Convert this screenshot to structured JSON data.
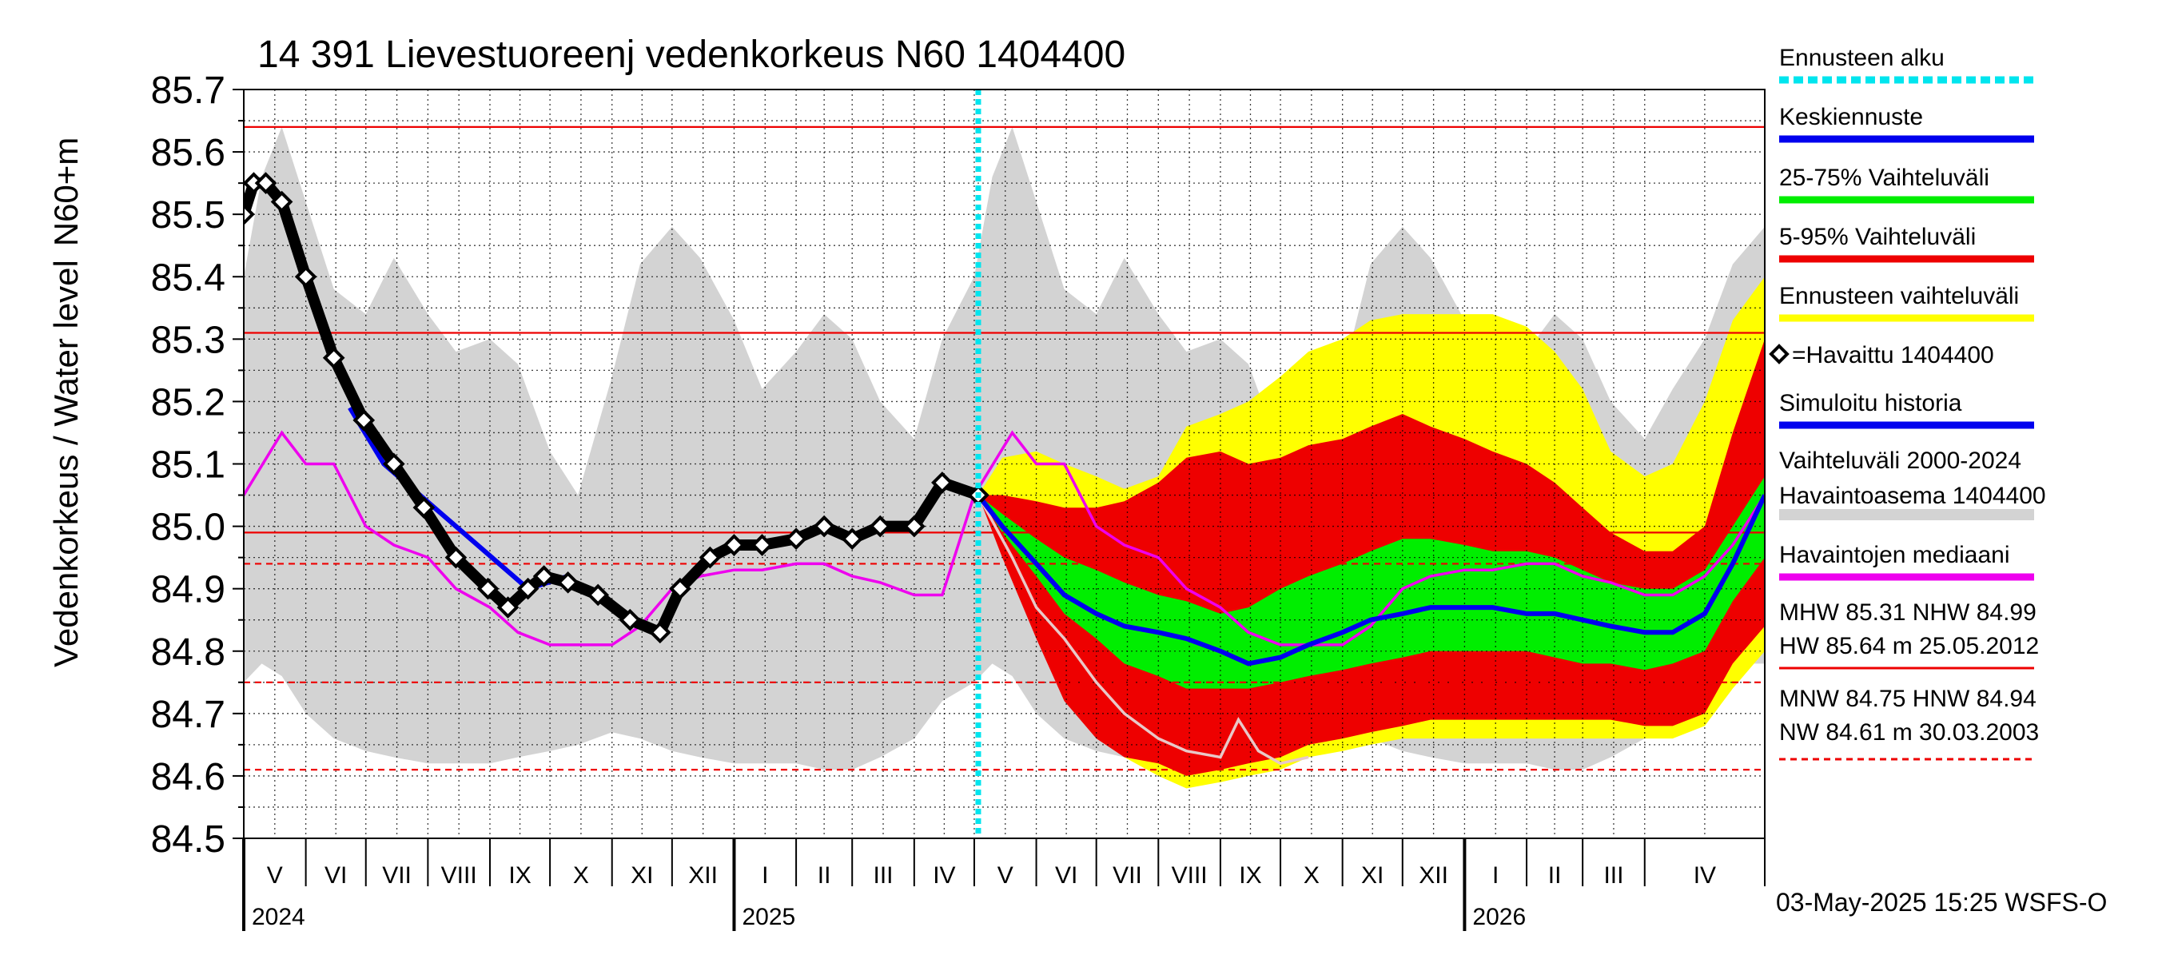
{
  "chart_data": {
    "type": "area",
    "title": "14 391 Lievestuoreenj vedenkorkeus N60 1404400",
    "ylabel_outer": "Vedenkorkeus / Water level",
    "ylabel_inner": "N60+m",
    "ylim": [
      84.5,
      85.7
    ],
    "yticks": [
      "84.5",
      "84.6",
      "84.7",
      "84.8",
      "84.9",
      "85.0",
      "85.1",
      "85.2",
      "85.3",
      "85.4",
      "85.5",
      "85.6",
      "85.7"
    ],
    "x_months": [
      "V",
      "VI",
      "VII",
      "VIII",
      "IX",
      "X",
      "XI",
      "XII",
      "I",
      "II",
      "III",
      "IV",
      "V",
      "VI",
      "VII",
      "VIII",
      "IX",
      "X",
      "XI",
      "XII",
      "I",
      "II",
      "III",
      "IV"
    ],
    "x_years": [
      {
        "label": "2024",
        "month_index": 0
      },
      {
        "label": "2025",
        "month_index": 8
      },
      {
        "label": "2026",
        "month_index": 20
      }
    ],
    "x_range": [
      "2024-05-01",
      "2026-05-31"
    ],
    "grid": true,
    "forecast_start": "2025-05-03",
    "reference_lines": [
      {
        "label": "MHW",
        "value": 85.31,
        "style": "solid"
      },
      {
        "label": "NHW",
        "value": 84.99,
        "style": "solid"
      },
      {
        "label": "HW",
        "value": 85.64,
        "style": "solid"
      },
      {
        "label": "MNW",
        "value": 84.75,
        "style": "dashed"
      },
      {
        "label": "HNW",
        "value": 84.94,
        "style": "dashed"
      },
      {
        "label": "NW",
        "value": 84.61,
        "style": "dashed"
      }
    ],
    "legend": [
      {
        "label": "Ennusteen alku",
        "color": "#00e5ee",
        "kind": "dotted"
      },
      {
        "label": "Keskiennuste",
        "color": "#0000ee",
        "kind": "line"
      },
      {
        "label": "25-75% Vaihteluväli",
        "color": "#00ee00",
        "kind": "line"
      },
      {
        "label": "5-95% Vaihteluväli",
        "color": "#ee0000",
        "kind": "line"
      },
      {
        "label": "Ennusteen vaihteluväli",
        "color": "#ffff00",
        "kind": "line"
      },
      {
        "label": "=Havaittu 1404400",
        "color": "#000000",
        "kind": "marker"
      },
      {
        "label": "Simuloitu historia",
        "color": "#0000ee",
        "kind": "line"
      },
      {
        "label": "Vaihteluväli 2000-2024",
        "color": "",
        "kind": "text"
      },
      {
        "label": " Havaintoasema 1404400",
        "color": "#d3d3d3",
        "kind": "line"
      },
      {
        "label": "Havaintojen mediaani",
        "color": "#ee00ee",
        "kind": "line"
      }
    ],
    "stats": {
      "line1": "MHW  85.31 NHW  84.99",
      "line2": "HW  85.64 m 25.05.2012",
      "line3": "MNW  84.75 HNW  84.94",
      "line4": "NW  84.61 m 30.03.2003"
    },
    "footer": "03-May-2025 15:25 WSFS-O",
    "colors": {
      "history_range": "#d3d3d3",
      "forecast_range": "#ffff00",
      "range_5_95": "#ee0000",
      "range_25_75": "#00ee00",
      "mean_forecast": "#0000ee",
      "simulated": "#0000ee",
      "observed": "#000000",
      "median": "#ee00ee",
      "forecast_start": "#00e5ee",
      "reference": "#ee0000"
    },
    "series": {
      "hist_band": {
        "x": [
          "2024-05-01",
          "2024-05-10",
          "2024-05-20",
          "2024-06-01",
          "2024-06-15",
          "2024-07-01",
          "2024-07-15",
          "2024-08-01",
          "2024-08-15",
          "2024-09-01",
          "2024-09-15",
          "2024-10-01",
          "2024-10-15",
          "2024-11-01",
          "2024-11-15",
          "2024-12-01",
          "2024-12-15",
          "2025-01-01",
          "2025-01-15",
          "2025-02-01",
          "2025-02-15",
          "2025-03-01",
          "2025-03-15",
          "2025-04-01",
          "2025-04-15",
          "2025-05-01",
          "2025-05-10",
          "2025-05-20",
          "2025-06-01",
          "2025-06-15",
          "2025-07-01",
          "2025-07-15",
          "2025-08-01",
          "2025-08-15",
          "2025-09-01",
          "2025-09-15",
          "2025-10-01",
          "2025-10-15",
          "2025-11-01",
          "2025-11-15",
          "2025-12-01",
          "2025-12-15",
          "2026-01-01",
          "2026-01-15",
          "2026-02-01",
          "2026-02-15",
          "2026-03-01",
          "2026-03-15",
          "2026-04-01",
          "2026-04-15",
          "2026-05-01",
          "2026-05-15",
          "2026-05-31"
        ],
        "lo": [
          84.75,
          84.78,
          84.76,
          84.7,
          84.66,
          84.64,
          84.63,
          84.62,
          84.62,
          84.62,
          84.63,
          84.64,
          84.65,
          84.67,
          84.66,
          84.64,
          84.63,
          84.62,
          84.62,
          84.62,
          84.61,
          84.61,
          84.63,
          84.66,
          84.72,
          84.75,
          84.78,
          84.76,
          84.7,
          84.66,
          84.64,
          84.63,
          84.62,
          84.62,
          84.62,
          84.63,
          84.64,
          84.65,
          84.67,
          84.66,
          84.64,
          84.63,
          84.62,
          84.62,
          84.62,
          84.61,
          84.61,
          84.63,
          84.66,
          84.7,
          84.75,
          84.78,
          84.78
        ],
        "hi": [
          85.4,
          85.56,
          85.64,
          85.52,
          85.38,
          85.34,
          85.43,
          85.34,
          85.28,
          85.3,
          85.26,
          85.12,
          85.05,
          85.24,
          85.42,
          85.48,
          85.43,
          85.33,
          85.22,
          85.28,
          85.34,
          85.3,
          85.2,
          85.14,
          85.3,
          85.4,
          85.56,
          85.64,
          85.52,
          85.38,
          85.34,
          85.43,
          85.34,
          85.28,
          85.3,
          85.26,
          85.12,
          85.05,
          85.24,
          85.42,
          85.48,
          85.43,
          85.33,
          85.22,
          85.28,
          85.34,
          85.3,
          85.2,
          85.14,
          85.22,
          85.3,
          85.42,
          85.48
        ]
      },
      "fc_x": [
        "2025-05-03",
        "2025-05-15",
        "2025-06-01",
        "2025-06-15",
        "2025-07-01",
        "2025-07-15",
        "2025-08-01",
        "2025-08-15",
        "2025-09-01",
        "2025-09-15",
        "2025-10-01",
        "2025-10-15",
        "2025-11-01",
        "2025-11-15",
        "2025-12-01",
        "2025-12-15",
        "2026-01-01",
        "2026-01-15",
        "2026-02-01",
        "2026-02-15",
        "2026-03-01",
        "2026-03-15",
        "2026-04-01",
        "2026-04-15",
        "2026-05-01",
        "2026-05-15",
        "2026-05-31"
      ],
      "fc_y_lo": [
        85.05,
        84.98,
        84.88,
        84.75,
        84.68,
        84.63,
        84.6,
        84.58,
        84.59,
        84.6,
        84.61,
        84.63,
        84.64,
        84.65,
        84.66,
        84.66,
        84.66,
        84.66,
        84.66,
        84.66,
        84.66,
        84.66,
        84.66,
        84.66,
        84.68,
        84.74,
        84.8
      ],
      "fc_y_hi": [
        85.05,
        85.11,
        85.12,
        85.1,
        85.08,
        85.06,
        85.08,
        85.16,
        85.18,
        85.2,
        85.24,
        85.28,
        85.3,
        85.33,
        85.34,
        85.34,
        85.34,
        85.34,
        85.32,
        85.28,
        85.22,
        85.12,
        85.08,
        85.1,
        85.2,
        85.33,
        85.4
      ],
      "fc_r_lo": [
        85.05,
        84.95,
        84.82,
        84.72,
        84.66,
        84.63,
        84.62,
        84.6,
        84.61,
        84.62,
        84.63,
        84.65,
        84.66,
        84.67,
        84.68,
        84.69,
        84.69,
        84.69,
        84.69,
        84.69,
        84.69,
        84.69,
        84.68,
        84.68,
        84.7,
        84.78,
        84.84
      ],
      "fc_r_hi": [
        85.05,
        85.05,
        85.04,
        85.03,
        85.03,
        85.04,
        85.07,
        85.11,
        85.12,
        85.1,
        85.11,
        85.13,
        85.14,
        85.16,
        85.18,
        85.16,
        85.14,
        85.12,
        85.1,
        85.07,
        85.03,
        84.99,
        84.96,
        84.96,
        85.0,
        85.15,
        85.3
      ],
      "fc_g_lo": [
        85.05,
        84.99,
        84.92,
        84.86,
        84.82,
        84.78,
        84.76,
        84.74,
        84.74,
        84.74,
        84.75,
        84.76,
        84.77,
        84.78,
        84.79,
        84.8,
        84.8,
        84.8,
        84.8,
        84.79,
        84.78,
        84.78,
        84.77,
        84.78,
        84.8,
        84.88,
        84.95
      ],
      "fc_g_hi": [
        85.05,
        85.02,
        84.98,
        84.95,
        84.93,
        84.91,
        84.89,
        84.88,
        84.86,
        84.87,
        84.9,
        84.92,
        84.94,
        84.96,
        84.98,
        84.98,
        84.97,
        84.96,
        84.96,
        84.95,
        84.93,
        84.91,
        84.9,
        84.9,
        84.93,
        85.0,
        85.08
      ],
      "fc_mean": [
        85.05,
        85.0,
        84.94,
        84.89,
        84.86,
        84.84,
        84.83,
        84.82,
        84.8,
        84.78,
        84.79,
        84.81,
        84.83,
        84.85,
        84.86,
        84.87,
        84.87,
        84.87,
        84.86,
        84.86,
        84.85,
        84.84,
        84.83,
        84.83,
        84.86,
        84.94,
        85.05
      ],
      "observed": {
        "x": [
          "2024-05-01",
          "2024-05-06",
          "2024-05-12",
          "2024-05-20",
          "2024-06-01",
          "2024-06-15",
          "2024-06-30",
          "2024-07-15",
          "2024-07-30",
          "2024-08-15",
          "2024-08-31",
          "2024-09-10",
          "2024-09-20",
          "2024-09-28",
          "2024-10-10",
          "2024-10-25",
          "2024-11-10",
          "2024-11-25",
          "2024-12-05",
          "2024-12-20",
          "2025-01-01",
          "2025-01-15",
          "2025-02-01",
          "2025-02-15",
          "2025-03-01",
          "2025-03-15",
          "2025-04-01",
          "2025-04-15",
          "2025-05-03"
        ],
        "y": [
          85.5,
          85.55,
          85.55,
          85.52,
          85.4,
          85.27,
          85.17,
          85.1,
          85.03,
          84.95,
          84.9,
          84.87,
          84.9,
          84.92,
          84.91,
          84.89,
          84.85,
          84.83,
          84.9,
          84.95,
          84.97,
          84.97,
          84.98,
          85.0,
          84.98,
          85.0,
          85.0,
          85.07,
          85.05
        ]
      },
      "simulated": {
        "x": [
          "2024-06-23",
          "2024-07-10",
          "2024-09-20",
          "2024-10-10"
        ],
        "y": [
          85.19,
          85.1,
          84.9,
          84.92
        ]
      },
      "median": {
        "x": [
          "2024-05-01",
          "2024-05-20",
          "2024-06-01",
          "2024-06-15",
          "2024-07-01",
          "2024-07-15",
          "2024-08-01",
          "2024-08-15",
          "2024-09-01",
          "2024-09-15",
          "2024-10-01",
          "2024-10-15",
          "2024-11-01",
          "2024-11-15",
          "2024-12-01",
          "2024-12-15",
          "2025-01-01",
          "2025-01-15",
          "2025-02-01",
          "2025-02-15",
          "2025-03-01",
          "2025-03-15",
          "2025-04-01",
          "2025-04-15",
          "2025-05-01",
          "2025-05-20",
          "2025-06-01",
          "2025-06-15",
          "2025-07-01",
          "2025-07-15",
          "2025-08-01",
          "2025-08-15",
          "2025-09-01",
          "2025-09-15",
          "2025-10-01",
          "2025-10-15",
          "2025-11-01",
          "2025-11-15",
          "2025-12-01",
          "2025-12-15",
          "2026-01-01",
          "2026-01-15",
          "2026-02-01",
          "2026-02-15",
          "2026-03-01",
          "2026-03-15",
          "2026-04-01",
          "2026-04-15",
          "2026-05-01",
          "2026-05-15",
          "2026-05-31"
        ],
        "y": [
          85.05,
          85.15,
          85.1,
          85.1,
          85.0,
          84.97,
          84.95,
          84.9,
          84.87,
          84.83,
          84.81,
          84.81,
          84.81,
          84.84,
          84.9,
          84.92,
          84.93,
          84.93,
          84.94,
          84.94,
          84.92,
          84.91,
          84.89,
          84.89,
          85.05,
          85.15,
          85.1,
          85.1,
          85.0,
          84.97,
          84.95,
          84.9,
          84.87,
          84.83,
          84.81,
          84.81,
          84.81,
          84.84,
          84.9,
          84.92,
          84.93,
          84.93,
          84.94,
          84.94,
          84.92,
          84.91,
          84.89,
          84.89,
          84.92,
          84.97,
          85.05
        ]
      },
      "scenario": {
        "x": [
          "2025-05-03",
          "2025-05-20",
          "2025-06-01",
          "2025-06-15",
          "2025-07-01",
          "2025-07-15",
          "2025-08-01",
          "2025-08-15",
          "2025-09-01",
          "2025-09-10",
          "2025-09-20",
          "2025-10-01",
          "2025-10-15"
        ],
        "y": [
          85.05,
          84.95,
          84.87,
          84.82,
          84.75,
          84.7,
          84.66,
          84.64,
          84.63,
          84.69,
          84.64,
          84.62,
          84.63
        ]
      }
    }
  }
}
